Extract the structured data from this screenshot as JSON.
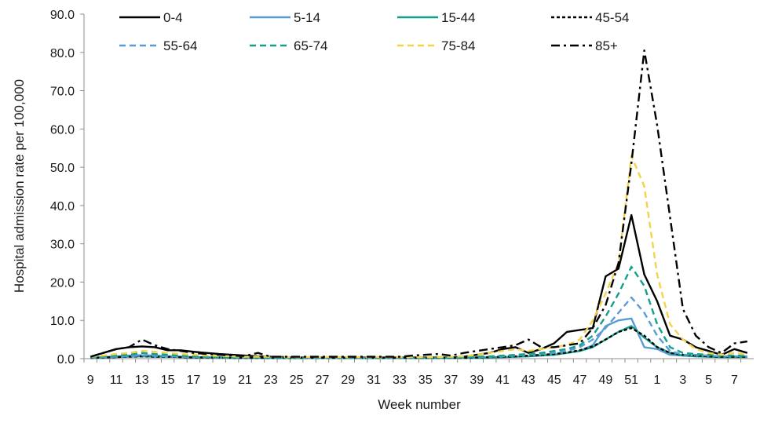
{
  "chart_data": {
    "type": "line",
    "title": "",
    "xlabel": "Week number",
    "ylabel": "Hospital admission rate per 100,000",
    "ylim": [
      0,
      90
    ],
    "yticks": [
      "0.0",
      "10.0",
      "20.0",
      "30.0",
      "40.0",
      "50.0",
      "60.0",
      "70.0",
      "80.0",
      "90.0"
    ],
    "grid": false,
    "legend_position": "top",
    "weeks": [
      9,
      10,
      11,
      12,
      13,
      14,
      15,
      16,
      17,
      18,
      19,
      20,
      21,
      22,
      23,
      24,
      25,
      26,
      27,
      28,
      29,
      30,
      31,
      32,
      33,
      34,
      35,
      36,
      37,
      38,
      39,
      40,
      41,
      42,
      43,
      44,
      45,
      46,
      47,
      48,
      49,
      50,
      51,
      52,
      1,
      2,
      3,
      4,
      5,
      6,
      7,
      8
    ],
    "xtick_labels": [
      "9",
      "11",
      "13",
      "15",
      "17",
      "19",
      "21",
      "23",
      "25",
      "27",
      "29",
      "31",
      "33",
      "35",
      "37",
      "39",
      "41",
      "43",
      "45",
      "47",
      "49",
      "51",
      "1",
      "3",
      "5",
      "7"
    ],
    "series": [
      {
        "name": "0-4",
        "color": "#000000",
        "dash": "solid",
        "values": [
          0.5,
          1.5,
          2.5,
          3,
          3.2,
          3,
          2.2,
          2.2,
          1.8,
          1.5,
          1.2,
          1,
          0.8,
          0.6,
          0.5,
          0.4,
          0.3,
          0.3,
          0.3,
          0.3,
          0.3,
          0.3,
          0.3,
          0.3,
          0.3,
          0.3,
          0.3,
          0.3,
          0.3,
          0.5,
          1,
          1.5,
          2.5,
          3,
          1.5,
          2.5,
          4,
          7,
          7.5,
          8,
          21.5,
          23.5,
          37.5,
          22,
          15,
          6,
          5,
          3,
          2,
          1,
          2.5,
          1.5
        ]
      },
      {
        "name": "5-14",
        "color": "#5b9bd5",
        "dash": "solid",
        "values": [
          0.2,
          0.4,
          0.6,
          0.8,
          0.9,
          0.8,
          0.6,
          0.5,
          0.4,
          0.3,
          0.3,
          0.2,
          0.2,
          0.2,
          0.2,
          0.2,
          0.2,
          0.2,
          0.2,
          0.2,
          0.2,
          0.2,
          0.2,
          0.2,
          0.2,
          0.2,
          0.2,
          0.2,
          0.2,
          0.2,
          0.2,
          0.3,
          0.4,
          0.5,
          0.6,
          0.8,
          1,
          1.5,
          2,
          3.5,
          8.5,
          10,
          10.5,
          3,
          2.5,
          1,
          0.8,
          0.6,
          0.5,
          0.5,
          0.6,
          0.5
        ]
      },
      {
        "name": "15-44",
        "color": "#13a08a",
        "dash": "solid",
        "values": [
          0.2,
          0.3,
          0.4,
          0.5,
          0.6,
          0.5,
          0.5,
          0.4,
          0.3,
          0.3,
          0.3,
          0.2,
          0.2,
          0.2,
          0.2,
          0.2,
          0.2,
          0.2,
          0.2,
          0.2,
          0.2,
          0.2,
          0.2,
          0.2,
          0.2,
          0.2,
          0.2,
          0.2,
          0.2,
          0.2,
          0.2,
          0.3,
          0.4,
          0.5,
          0.6,
          0.8,
          1,
          1.5,
          2,
          3,
          5,
          7,
          8.5,
          5.5,
          3,
          1.5,
          0.8,
          0.6,
          0.5,
          0.4,
          0.4,
          0.4
        ]
      },
      {
        "name": "45-54",
        "color": "#000000",
        "dash": "short",
        "values": [
          0.2,
          0.3,
          0.4,
          0.5,
          0.6,
          0.5,
          0.5,
          0.4,
          0.3,
          0.3,
          0.3,
          0.2,
          0.2,
          0.2,
          0.2,
          0.2,
          0.2,
          0.2,
          0.2,
          0.2,
          0.2,
          0.2,
          0.2,
          0.2,
          0.2,
          0.2,
          0.2,
          0.2,
          0.2,
          0.2,
          0.3,
          0.4,
          0.5,
          0.6,
          0.8,
          1,
          1.2,
          1.6,
          2.2,
          3.2,
          5,
          7,
          8,
          6,
          3,
          1.5,
          1,
          0.8,
          0.6,
          0.5,
          0.5,
          0.5
        ]
      },
      {
        "name": "55-64",
        "color": "#5b9bd5",
        "dash": "long",
        "values": [
          0.3,
          0.4,
          0.5,
          0.6,
          0.8,
          0.7,
          0.6,
          0.5,
          0.4,
          0.4,
          0.3,
          0.3,
          0.3,
          0.3,
          0.3,
          0.3,
          0.3,
          0.3,
          0.3,
          0.3,
          0.3,
          0.3,
          0.3,
          0.3,
          0.3,
          0.3,
          0.3,
          0.3,
          0.3,
          0.3,
          0.4,
          0.5,
          0.6,
          0.8,
          1,
          1.2,
          1.5,
          2,
          3,
          5,
          8,
          12,
          16,
          12,
          6,
          2,
          1,
          1,
          0.8,
          0.6,
          0.6,
          0.6
        ]
      },
      {
        "name": "65-74",
        "color": "#13a08a",
        "dash": "long",
        "values": [
          0.4,
          0.6,
          0.8,
          1,
          1.5,
          1.2,
          1,
          0.8,
          0.6,
          0.5,
          0.4,
          0.4,
          0.4,
          0.3,
          0.3,
          0.3,
          0.3,
          0.3,
          0.3,
          0.3,
          0.3,
          0.3,
          0.3,
          0.3,
          0.3,
          0.3,
          0.3,
          0.3,
          0.3,
          0.4,
          0.5,
          0.6,
          0.8,
          1,
          1.2,
          1.5,
          2,
          2.5,
          3.5,
          6,
          11,
          17,
          24,
          19,
          9,
          3,
          1.5,
          1.2,
          1,
          0.8,
          0.8,
          0.7
        ]
      },
      {
        "name": "75-84",
        "color": "#f3d34a",
        "dash": "long",
        "values": [
          0.5,
          0.8,
          1.2,
          1.5,
          2,
          1.8,
          1.5,
          1.2,
          1,
          0.8,
          0.7,
          0.6,
          0.5,
          0.5,
          0.5,
          0.4,
          0.4,
          0.4,
          0.4,
          0.4,
          0.4,
          0.4,
          0.4,
          0.4,
          0.4,
          0.4,
          0.4,
          0.4,
          0.5,
          0.6,
          1,
          1.5,
          2,
          2.5,
          2,
          2.5,
          3,
          3.5,
          5,
          10,
          17,
          25,
          53,
          45,
          22,
          9,
          5,
          2.5,
          1.5,
          1,
          1.5,
          1
        ]
      },
      {
        "name": "85+",
        "color": "#000000",
        "dash": "dashdot",
        "values": [
          0.5,
          1.5,
          2.5,
          3,
          5,
          3.5,
          2.5,
          2,
          1.5,
          1.2,
          1,
          0.8,
          0.7,
          1.5,
          0.5,
          0.5,
          0.5,
          0.5,
          0.5,
          0.5,
          0.5,
          0.5,
          0.5,
          0.5,
          0.5,
          0.8,
          1,
          1.2,
          0.8,
          1.5,
          2,
          2.5,
          3,
          3.5,
          5,
          3,
          3,
          3.5,
          4,
          8,
          14,
          25,
          51,
          80.5,
          61,
          37,
          13,
          6,
          3,
          1.5,
          4,
          4.5
        ]
      }
    ]
  }
}
